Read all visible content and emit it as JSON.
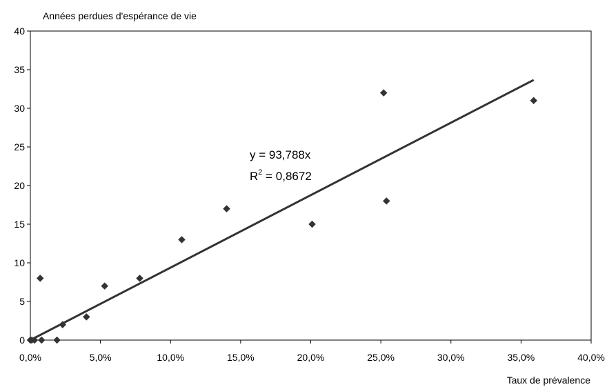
{
  "chart_data": {
    "type": "scatter",
    "title": "",
    "ylabel": "Années perdues d'espérance de vie",
    "xlabel": "Taux de prévalence",
    "xlim": [
      0,
      0.4
    ],
    "ylim": [
      0,
      40
    ],
    "x_ticks": [
      "0,0%",
      "5,0%",
      "10,0%",
      "15,0%",
      "20,0%",
      "25,0%",
      "30,0%",
      "35,0%",
      "40,0%"
    ],
    "y_ticks": [
      "0",
      "5",
      "10",
      "15",
      "20",
      "25",
      "30",
      "35",
      "40"
    ],
    "grid": false,
    "series": [
      {
        "marker": "diamond",
        "color": "#333333",
        "points": [
          {
            "x": 0.0,
            "y": 0
          },
          {
            "x": 0.001,
            "y": 0
          },
          {
            "x": 0.003,
            "y": 0
          },
          {
            "x": 0.007,
            "y": 8
          },
          {
            "x": 0.008,
            "y": 0
          },
          {
            "x": 0.019,
            "y": 0
          },
          {
            "x": 0.023,
            "y": 2
          },
          {
            "x": 0.04,
            "y": 3
          },
          {
            "x": 0.053,
            "y": 7
          },
          {
            "x": 0.078,
            "y": 8
          },
          {
            "x": 0.108,
            "y": 13
          },
          {
            "x": 0.14,
            "y": 17
          },
          {
            "x": 0.201,
            "y": 15
          },
          {
            "x": 0.252,
            "y": 32
          },
          {
            "x": 0.254,
            "y": 18
          },
          {
            "x": 0.359,
            "y": 31
          }
        ]
      }
    ],
    "trendline": {
      "slope": 93.788,
      "intercept": 0,
      "x_range": [
        0,
        0.359
      ],
      "equation_label": "y = 93,788x",
      "r2_prefix": "R",
      "r2_sup": "2",
      "r2_value": " = 0,8672"
    }
  }
}
